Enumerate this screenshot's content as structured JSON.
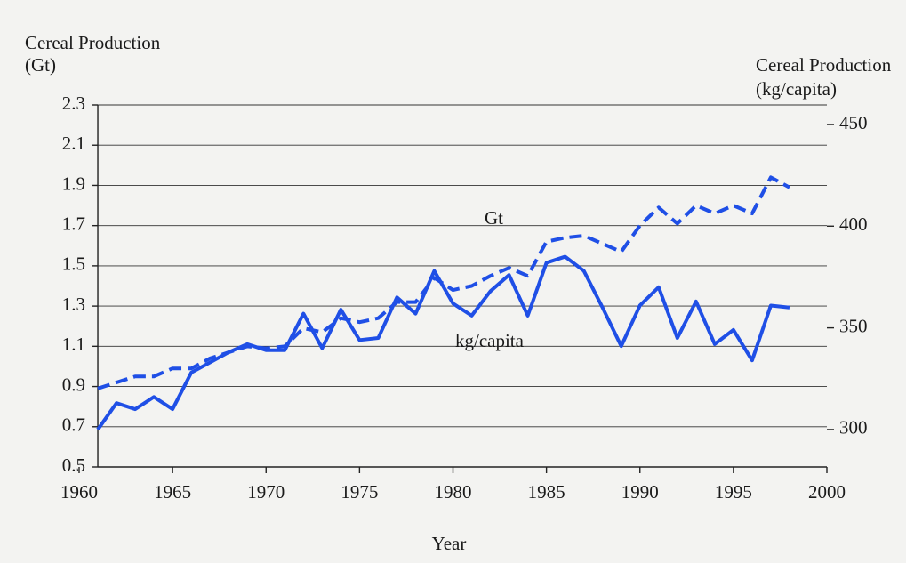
{
  "chart_data": {
    "type": "line",
    "ylabel": [
      "Cereal Production",
      "(Gt)"
    ],
    "y2label": [
      "Cereal Production",
      "(kg/capita)"
    ],
    "xlabel": "Year",
    "x": [
      1961,
      1962,
      1963,
      1964,
      1965,
      1966,
      1967,
      1968,
      1969,
      1970,
      1971,
      1972,
      1973,
      1974,
      1975,
      1976,
      1977,
      1978,
      1979,
      1980,
      1981,
      1982,
      1983,
      1984,
      1985,
      1986,
      1987,
      1988,
      1989,
      1990,
      1991,
      1992,
      1993,
      1994,
      1995,
      1996,
      1997,
      1998
    ],
    "series": [
      {
        "name": "Gt",
        "color": "#1f4fe6",
        "dashed": true,
        "values": [
          0.89,
          0.92,
          0.95,
          0.95,
          0.99,
          0.99,
          1.04,
          1.07,
          1.1,
          1.09,
          1.1,
          1.19,
          1.17,
          1.24,
          1.22,
          1.24,
          1.32,
          1.32,
          1.44,
          1.38,
          1.4,
          1.45,
          1.49,
          1.45,
          1.62,
          1.64,
          1.65,
          1.61,
          1.57,
          1.7,
          1.79,
          1.71,
          1.8,
          1.76,
          1.8,
          1.76,
          1.94,
          1.89
        ]
      },
      {
        "name": "kg/capita",
        "color": "#1f4fe6",
        "dashed": false,
        "axis": "y2",
        "values": [
          300,
          313,
          310,
          316,
          310,
          328,
          333,
          338,
          342,
          339,
          339,
          357,
          340,
          359,
          344,
          345,
          365,
          357,
          378,
          362,
          356,
          368,
          376,
          356,
          382,
          385,
          378,
          360,
          341,
          361,
          370,
          345,
          363,
          342,
          349,
          334,
          361,
          360
        ]
      }
    ],
    "xlim": [
      1960,
      2000
    ],
    "xticks": [
      1960,
      1965,
      1970,
      1975,
      1980,
      1985,
      1990,
      1995,
      2000
    ],
    "ylim": [
      0.5,
      2.3
    ],
    "yticks": [
      0.5,
      0.7,
      0.9,
      1.1,
      1.3,
      1.5,
      1.7,
      1.9,
      2.1,
      2.3
    ],
    "y2lim": [
      281.6,
      459.6
    ],
    "y2ticks": [
      300,
      350,
      400,
      450
    ],
    "grid": true
  }
}
